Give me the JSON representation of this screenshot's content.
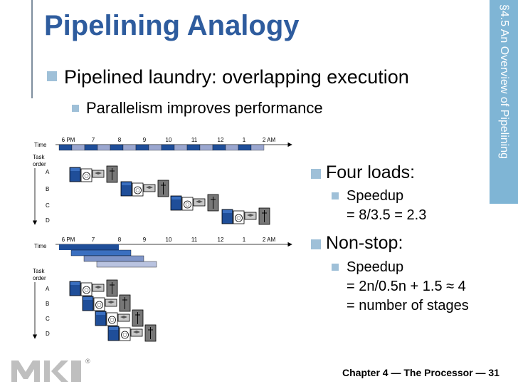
{
  "slide": {
    "title": "Pipelining Analogy",
    "section_label": "§4.5 An Overview of Pipelining",
    "bullets": {
      "main": "Pipelined laundry: overlapping execution",
      "sub": "Parallelism improves performance"
    },
    "right_bullets": {
      "four_loads": "Four loads:",
      "speedup1_label": "Speedup",
      "speedup1_formula": "= 8/3.5 = 2.3",
      "nonstop": "Non-stop:",
      "speedup2_label": "Speedup",
      "speedup2_formula": "= 2n/0.5n + 1.5 ≈ 4",
      "speedup2_note": "= number of stages"
    },
    "footer": "Chapter 4 — The Processor — 31",
    "logo_registered": "®"
  },
  "diagram": {
    "time_label": "Time",
    "task_order_label": [
      "Task",
      "order"
    ],
    "time_ticks": [
      "6 PM",
      "7",
      "8",
      "9",
      "10",
      "11",
      "12",
      "1",
      "2 AM"
    ],
    "tasks": [
      "A",
      "B",
      "C",
      "D"
    ]
  },
  "colors": {
    "title": "#2E5C9E",
    "sidebar": "#7FB5D5",
    "bullet": "#9FC0D8",
    "timeline_dark": "#1F4E99",
    "timeline_light": "#9AA6CF"
  }
}
